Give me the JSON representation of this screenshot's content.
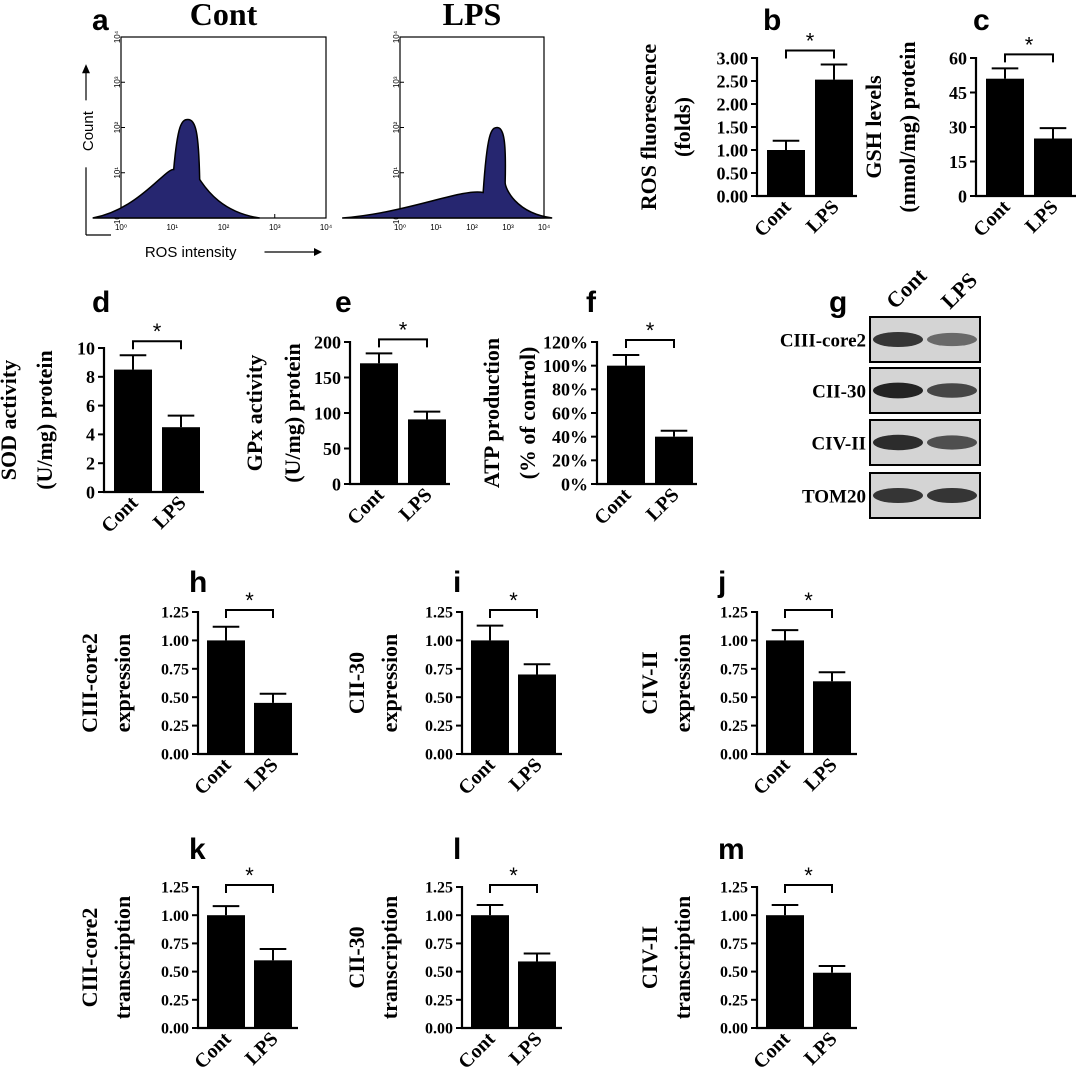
{
  "panel_letters": [
    "a",
    "b",
    "c",
    "d",
    "e",
    "f",
    "g",
    "h",
    "i",
    "j",
    "k",
    "l",
    "m"
  ],
  "chart_data": [
    {
      "id": "a-cont",
      "type": "area",
      "title": "Cont",
      "xlabel": "ROS intensity",
      "ylabel": "Count",
      "xscale": "log",
      "xlim": [
        1,
        10000
      ],
      "ylim": [
        1,
        10000
      ],
      "x_ticks": [
        "10⁰",
        "10¹",
        "10²",
        "10³",
        "10⁴"
      ],
      "y_ticks": [
        "10⁰",
        "10¹",
        "10²",
        "10³",
        "10⁴"
      ],
      "peak_x": 20,
      "peak_y": 150,
      "color": "#262670"
    },
    {
      "id": "a-lps",
      "type": "area",
      "title": "LPS",
      "xlabel": "",
      "ylabel": "",
      "xscale": "log",
      "xlim": [
        1,
        10000
      ],
      "ylim": [
        1,
        10000
      ],
      "x_ticks": [
        "10⁰",
        "10¹",
        "10²",
        "10³",
        "10⁴"
      ],
      "y_ticks": [
        "10⁰",
        "10¹",
        "10²",
        "10³",
        "10⁴"
      ],
      "peak_x": 500,
      "peak_y": 100,
      "color": "#262670"
    },
    {
      "id": "b",
      "type": "bar",
      "categories": [
        "Cont",
        "LPS"
      ],
      "values": [
        1.0,
        2.53
      ],
      "errors": [
        0.2,
        0.33
      ],
      "ylabel": [
        "ROS fluorescence",
        "(folds)"
      ],
      "ylim": [
        0,
        3
      ],
      "y_ticks": [
        "0.00",
        "0.50",
        "1.00",
        "1.50",
        "2.00",
        "2.50",
        "3.00"
      ],
      "significance": "*"
    },
    {
      "id": "c",
      "type": "bar",
      "categories": [
        "Cont",
        "LPS"
      ],
      "values": [
        51,
        25
      ],
      "errors": [
        4.5,
        4.5
      ],
      "ylabel": [
        "GSH levels",
        "(nmol/mg) protein"
      ],
      "ylim": [
        0,
        60
      ],
      "y_ticks": [
        "0",
        "15",
        "30",
        "45",
        "60"
      ],
      "significance": "*"
    },
    {
      "id": "d",
      "type": "bar",
      "categories": [
        "Cont",
        "LPS"
      ],
      "values": [
        8.5,
        4.5
      ],
      "errors": [
        1.0,
        0.8
      ],
      "ylabel": [
        "SOD activity",
        "(U/mg) protein"
      ],
      "ylim": [
        0,
        10
      ],
      "y_ticks": [
        "0",
        "2",
        "4",
        "6",
        "8",
        "10"
      ],
      "significance": "*"
    },
    {
      "id": "e",
      "type": "bar",
      "categories": [
        "Cont",
        "LPS"
      ],
      "values": [
        170,
        91
      ],
      "errors": [
        14,
        11
      ],
      "ylabel": [
        "GPx activity",
        "(U/mg) protein"
      ],
      "ylim": [
        0,
        200
      ],
      "y_ticks": [
        "0",
        "50",
        "100",
        "150",
        "200"
      ],
      "significance": "*"
    },
    {
      "id": "f",
      "type": "bar",
      "categories": [
        "Cont",
        "LPS"
      ],
      "values": [
        100,
        40
      ],
      "errors": [
        9,
        5
      ],
      "ylabel": [
        "ATP production",
        "(% of control)"
      ],
      "ylim": [
        0,
        120
      ],
      "y_ticks": [
        "0%",
        "20%",
        "40%",
        "60%",
        "80%",
        "100%",
        "120%"
      ],
      "significance": "*"
    },
    {
      "id": "h",
      "type": "bar",
      "categories": [
        "Cont",
        "LPS"
      ],
      "values": [
        1.0,
        0.45
      ],
      "errors": [
        0.12,
        0.08
      ],
      "ylabel": [
        "CIII-core2",
        "expression"
      ],
      "ylim": [
        0,
        1.25
      ],
      "y_ticks": [
        "0.00",
        "0.25",
        "0.50",
        "0.75",
        "1.00",
        "1.25"
      ],
      "significance": "*"
    },
    {
      "id": "i",
      "type": "bar",
      "categories": [
        "Cont",
        "LPS"
      ],
      "values": [
        1.0,
        0.7
      ],
      "errors": [
        0.13,
        0.09
      ],
      "ylabel": [
        "CII-30",
        "expression"
      ],
      "ylim": [
        0,
        1.25
      ],
      "y_ticks": [
        "0.00",
        "0.25",
        "0.50",
        "0.75",
        "1.00",
        "1.25"
      ],
      "significance": "*"
    },
    {
      "id": "j",
      "type": "bar",
      "categories": [
        "Cont",
        "LPS"
      ],
      "values": [
        1.0,
        0.64
      ],
      "errors": [
        0.09,
        0.08
      ],
      "ylabel": [
        "CIV-II",
        "expression"
      ],
      "ylim": [
        0,
        1.25
      ],
      "y_ticks": [
        "0.00",
        "0.25",
        "0.50",
        "0.75",
        "1.00",
        "1.25"
      ],
      "significance": "*"
    },
    {
      "id": "k",
      "type": "bar",
      "categories": [
        "Cont",
        "LPS"
      ],
      "values": [
        1.0,
        0.6
      ],
      "errors": [
        0.08,
        0.1
      ],
      "ylabel": [
        "CIII-core2",
        "transcription"
      ],
      "ylim": [
        0,
        1.25
      ],
      "y_ticks": [
        "0.00",
        "0.25",
        "0.50",
        "0.75",
        "1.00",
        "1.25"
      ],
      "significance": "*"
    },
    {
      "id": "l",
      "type": "bar",
      "categories": [
        "Cont",
        "LPS"
      ],
      "values": [
        1.0,
        0.59
      ],
      "errors": [
        0.09,
        0.07
      ],
      "ylabel": [
        "CII-30",
        "transcription"
      ],
      "ylim": [
        0,
        1.25
      ],
      "y_ticks": [
        "0.00",
        "0.25",
        "0.50",
        "0.75",
        "1.00",
        "1.25"
      ],
      "significance": "*"
    },
    {
      "id": "m",
      "type": "bar",
      "categories": [
        "Cont",
        "LPS"
      ],
      "values": [
        1.0,
        0.49
      ],
      "errors": [
        0.09,
        0.06
      ],
      "ylabel": [
        "CIV-II",
        "transcription"
      ],
      "ylim": [
        0,
        1.25
      ],
      "y_ticks": [
        "0.00",
        "0.25",
        "0.50",
        "0.75",
        "1.00",
        "1.25"
      ],
      "significance": "*"
    }
  ],
  "western_blot": {
    "lanes": [
      "Cont",
      "LPS"
    ],
    "bands": [
      {
        "label": "CIII-core2",
        "intensity": [
          0.85,
          0.55
        ]
      },
      {
        "label": "CII-30",
        "intensity": [
          0.95,
          0.75
        ]
      },
      {
        "label": "CIV-II",
        "intensity": [
          0.9,
          0.7
        ]
      },
      {
        "label": "TOM20",
        "intensity": [
          0.85,
          0.85
        ]
      }
    ]
  }
}
